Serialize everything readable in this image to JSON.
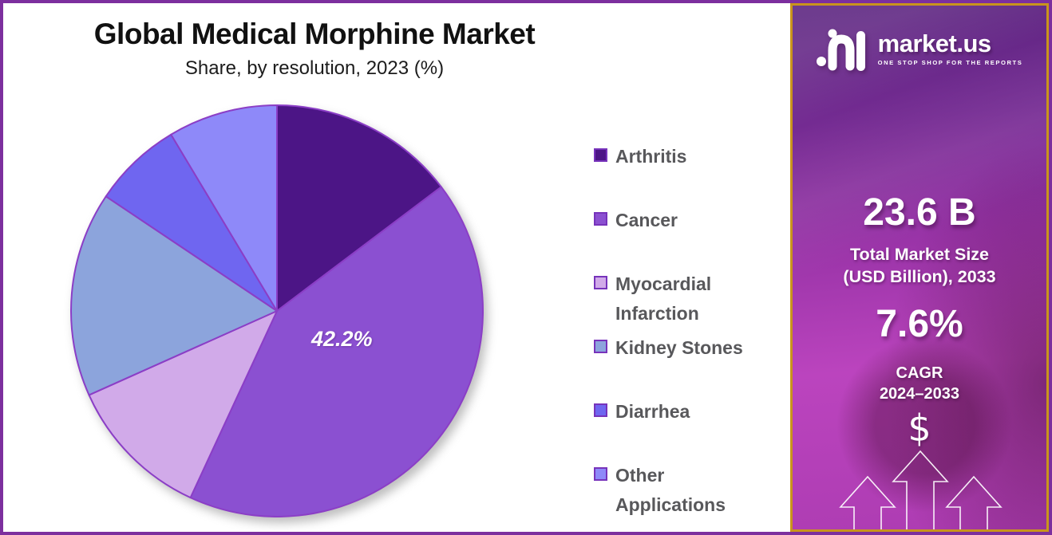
{
  "header": {
    "title": "Global Medical Morphine Market",
    "subtitle": "Share, by resolution, 2023 (%)"
  },
  "chart_data": {
    "type": "pie",
    "title": "Global Medical Morphine Market",
    "subtitle": "Share, by resolution, 2023 (%)",
    "unit": "%",
    "start_angle_deg": 0,
    "direction": "clockwise",
    "legend_position": "right",
    "labels": [
      "Arthritis",
      "Cancer",
      "Myocardial Infarction",
      "Kidney Stones",
      "Diarrhea",
      "Other Applications"
    ],
    "values": [
      14.7,
      42.2,
      11.4,
      16.1,
      7.0,
      8.6
    ],
    "colors": [
      "#4C1586",
      "#8B50D1",
      "#D1AAE9",
      "#8CA4DC",
      "#6F66F0",
      "#8E89F9"
    ],
    "stroke_color": "#8B3EC6",
    "labeled_slice": {
      "label": "Cancer",
      "text": "42.2%"
    }
  },
  "sidebar": {
    "brand": {
      "name": "market.us",
      "tagline": "ONE STOP SHOP FOR THE REPORTS",
      "logo_icon": "marketus-logo"
    },
    "stats": [
      {
        "value": "23.6 B",
        "label_line1": "Total Market Size",
        "label_line2": "(USD Billion), 2033"
      },
      {
        "value": "7.6%",
        "label_line1": "CAGR",
        "label_line2": "2024–2033"
      }
    ],
    "dollar_symbol": "$",
    "growth_arrows_icon": "three-up-arrows"
  },
  "colors": {
    "canvas_border": "#7C2F9E",
    "sidebar_border": "#C9941C",
    "legend_text": "#58585B",
    "swatch_border": "#7733BB",
    "pie_label_color": "#FFFFFF",
    "title_color": "#111111"
  }
}
